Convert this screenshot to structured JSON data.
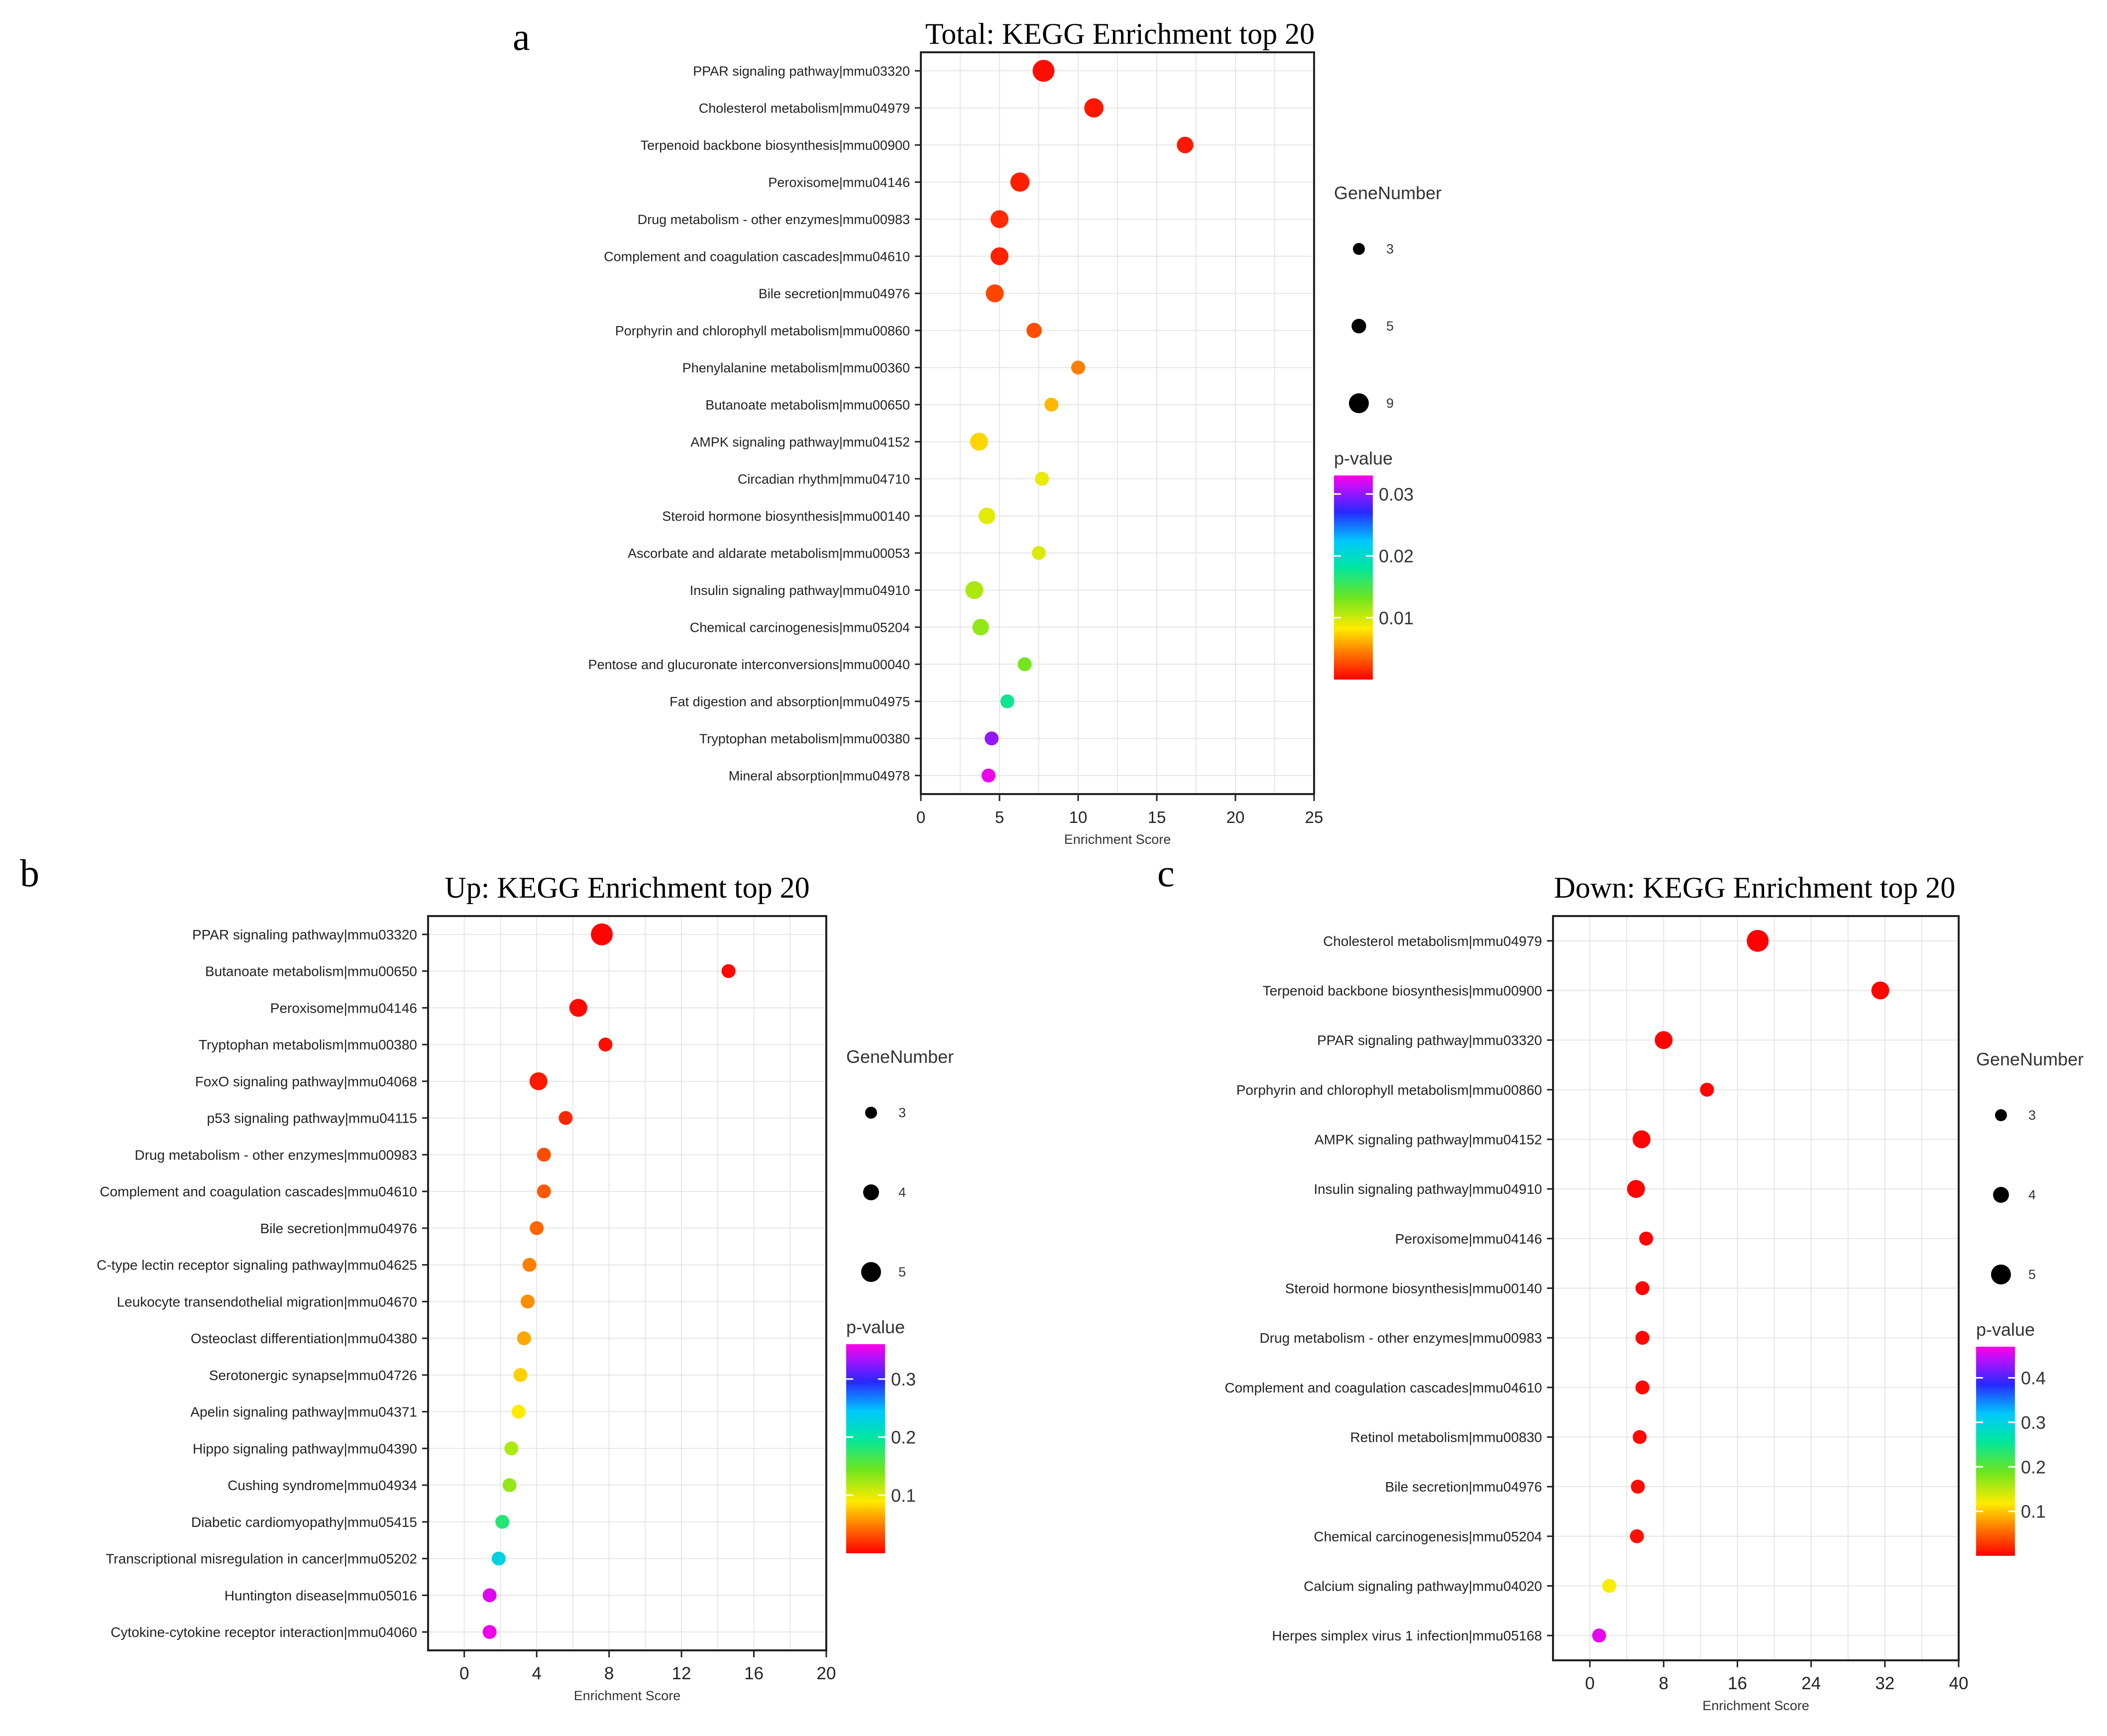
{
  "figure": {
    "panel_letters": [
      "a",
      "b",
      "c"
    ],
    "gene_number_title": "GeneNumber",
    "pvalue_title": "p-value"
  },
  "chart_data": [
    {
      "panel": "a",
      "type": "scatter",
      "title": "Total: KEGG Enrichment top 20",
      "xlabel": "Enrichment Score",
      "ylabel": "",
      "xlim": [
        0,
        25
      ],
      "xticks": [
        0,
        5,
        10,
        15,
        20,
        25
      ],
      "grid": true,
      "legend_position": "right",
      "size_legend": {
        "title": "GeneNumber",
        "values": [
          3,
          5,
          9
        ]
      },
      "color_legend": {
        "title": "p-value",
        "ticks": [
          0.01,
          0.02,
          0.03
        ],
        "range": [
          0,
          0.033
        ]
      },
      "size_range": [
        3,
        9
      ],
      "points": [
        {
          "term": "PPAR signaling pathway|mmu03320",
          "x": 7.8,
          "genes": 9,
          "p": 0.0005
        },
        {
          "term": "Cholesterol metabolism|mmu04979",
          "x": 11.0,
          "genes": 7,
          "p": 0.0008
        },
        {
          "term": "Terpenoid backbone biosynthesis|mmu00900",
          "x": 16.8,
          "genes": 5,
          "p": 0.0009
        },
        {
          "term": "Peroxisome|mmu04146",
          "x": 6.3,
          "genes": 7,
          "p": 0.0011
        },
        {
          "term": "Drug metabolism - other enzymes|mmu00983",
          "x": 5.0,
          "genes": 6,
          "p": 0.0015
        },
        {
          "term": "Complement and coagulation cascades|mmu04610",
          "x": 5.0,
          "genes": 6,
          "p": 0.0012
        },
        {
          "term": "Bile secretion|mmu04976",
          "x": 4.7,
          "genes": 6,
          "p": 0.0025
        },
        {
          "term": "Porphyrin and chlorophyll metabolism|mmu00860",
          "x": 7.2,
          "genes": 4,
          "p": 0.0028
        },
        {
          "term": "Phenylalanine metabolism|mmu00360",
          "x": 10.0,
          "genes": 3,
          "p": 0.0045
        },
        {
          "term": "Butanoate metabolism|mmu00650",
          "x": 8.3,
          "genes": 3,
          "p": 0.0065
        },
        {
          "term": "AMPK signaling pathway|mmu04152",
          "x": 3.7,
          "genes": 6,
          "p": 0.0075
        },
        {
          "term": "Circadian rhythm|mmu04710",
          "x": 7.7,
          "genes": 3,
          "p": 0.009
        },
        {
          "term": "Steroid hormone biosynthesis|mmu00140",
          "x": 4.2,
          "genes": 5,
          "p": 0.0092
        },
        {
          "term": "Ascorbate and aldarate metabolism|mmu00053",
          "x": 7.5,
          "genes": 3,
          "p": 0.0095
        },
        {
          "term": "Insulin signaling pathway|mmu04910",
          "x": 3.4,
          "genes": 6,
          "p": 0.011
        },
        {
          "term": "Chemical carcinogenesis|mmu05204",
          "x": 3.8,
          "genes": 5,
          "p": 0.012
        },
        {
          "term": "Pentose and glucuronate interconversions|mmu00040",
          "x": 6.6,
          "genes": 3,
          "p": 0.013
        },
        {
          "term": "Fat digestion and absorption|mmu04975",
          "x": 5.5,
          "genes": 3,
          "p": 0.0175
        },
        {
          "term": "Tryptophan metabolism|mmu00380",
          "x": 4.5,
          "genes": 3,
          "p": 0.03
        },
        {
          "term": "Mineral absorption|mmu04978",
          "x": 4.3,
          "genes": 3,
          "p": 0.0325
        }
      ]
    },
    {
      "panel": "b",
      "type": "scatter",
      "title": "Up: KEGG Enrichment top 20",
      "xlabel": "Enrichment Score",
      "ylabel": "",
      "xlim": [
        -2,
        20
      ],
      "xticks": [
        0,
        4,
        8,
        12,
        16,
        20
      ],
      "grid": true,
      "legend_position": "right",
      "size_legend": {
        "title": "GeneNumber",
        "values": [
          3,
          4,
          5
        ]
      },
      "color_legend": {
        "title": "p-value",
        "ticks": [
          0.1,
          0.2,
          0.3
        ],
        "range": [
          0,
          0.36
        ]
      },
      "size_range": [
        3,
        5
      ],
      "points": [
        {
          "term": "PPAR signaling pathway|mmu03320",
          "x": 7.6,
          "genes": 5,
          "p": 0.002
        },
        {
          "term": "Butanoate metabolism|mmu00650",
          "x": 14.6,
          "genes": 3,
          "p": 0.003
        },
        {
          "term": "Peroxisome|mmu04146",
          "x": 6.3,
          "genes": 4,
          "p": 0.004
        },
        {
          "term": "Tryptophan metabolism|mmu00380",
          "x": 7.8,
          "genes": 3,
          "p": 0.006
        },
        {
          "term": "FoxO signaling pathway|mmu04068",
          "x": 4.1,
          "genes": 4,
          "p": 0.01
        },
        {
          "term": "p53 signaling pathway|mmu04115",
          "x": 5.6,
          "genes": 3,
          "p": 0.015
        },
        {
          "term": "Drug metabolism - other enzymes|mmu00983",
          "x": 4.4,
          "genes": 3,
          "p": 0.03
        },
        {
          "term": "Complement and coagulation cascades|mmu04610",
          "x": 4.4,
          "genes": 3,
          "p": 0.035
        },
        {
          "term": "Bile secretion|mmu04976",
          "x": 4.0,
          "genes": 3,
          "p": 0.04
        },
        {
          "term": "C-type lectin receptor signaling pathway|mmu04625",
          "x": 3.6,
          "genes": 3,
          "p": 0.05
        },
        {
          "term": "Leukocyte transendothelial migration|mmu04670",
          "x": 3.5,
          "genes": 3,
          "p": 0.055
        },
        {
          "term": "Osteoclast differentiation|mmu04380",
          "x": 3.3,
          "genes": 3,
          "p": 0.065
        },
        {
          "term": "Serotonergic synapse|mmu04726",
          "x": 3.1,
          "genes": 3,
          "p": 0.08
        },
        {
          "term": "Apelin signaling pathway|mmu04371",
          "x": 3.0,
          "genes": 3,
          "p": 0.09
        },
        {
          "term": "Hippo signaling pathway|mmu04390",
          "x": 2.6,
          "genes": 3,
          "p": 0.12
        },
        {
          "term": "Cushing syndrome|mmu04934",
          "x": 2.5,
          "genes": 3,
          "p": 0.13
        },
        {
          "term": "Diabetic cardiomyopathy|mmu05415",
          "x": 2.1,
          "genes": 3,
          "p": 0.18
        },
        {
          "term": "Transcriptional misregulation in cancer|mmu05202",
          "x": 1.9,
          "genes": 3,
          "p": 0.23
        },
        {
          "term": "Huntington disease|mmu05016",
          "x": 1.4,
          "genes": 3,
          "p": 0.35
        },
        {
          "term": "Cytokine-cytokine receptor interaction|mmu04060",
          "x": 1.4,
          "genes": 3,
          "p": 0.355
        }
      ]
    },
    {
      "panel": "c",
      "type": "scatter",
      "title": "Down: KEGG Enrichment top 20",
      "xlabel": "Enrichment Score",
      "ylabel": "",
      "xlim": [
        -4,
        40
      ],
      "xticks": [
        0,
        8,
        16,
        24,
        32,
        40
      ],
      "grid": true,
      "legend_position": "right",
      "size_legend": {
        "title": "GeneNumber",
        "values": [
          3,
          4,
          5
        ]
      },
      "color_legend": {
        "title": "p-value",
        "ticks": [
          0.1,
          0.2,
          0.3,
          0.4
        ],
        "range": [
          0,
          0.47
        ]
      },
      "size_range": [
        3,
        5
      ],
      "points": [
        {
          "term": "Cholesterol metabolism|mmu04979",
          "x": 18.2,
          "genes": 5,
          "p": 0.001
        },
        {
          "term": "Terpenoid backbone biosynthesis|mmu00900",
          "x": 31.5,
          "genes": 4,
          "p": 0.002
        },
        {
          "term": "PPAR signaling pathway|mmu03320",
          "x": 8.0,
          "genes": 4,
          "p": 0.001
        },
        {
          "term": "Porphyrin and chlorophyll metabolism|mmu00860",
          "x": 12.7,
          "genes": 3,
          "p": 0.003
        },
        {
          "term": "AMPK signaling pathway|mmu04152",
          "x": 5.6,
          "genes": 4,
          "p": 0.002
        },
        {
          "term": "Insulin signaling pathway|mmu04910",
          "x": 5.0,
          "genes": 4,
          "p": 0.002
        },
        {
          "term": "Peroxisome|mmu04146",
          "x": 6.1,
          "genes": 3,
          "p": 0.003
        },
        {
          "term": "Steroid hormone biosynthesis|mmu00140",
          "x": 5.7,
          "genes": 3,
          "p": 0.003
        },
        {
          "term": "Drug metabolism - other enzymes|mmu00983",
          "x": 5.7,
          "genes": 3,
          "p": 0.004
        },
        {
          "term": "Complement and coagulation cascades|mmu04610",
          "x": 5.7,
          "genes": 3,
          "p": 0.004
        },
        {
          "term": "Retinol metabolism|mmu00830",
          "x": 5.4,
          "genes": 3,
          "p": 0.005
        },
        {
          "term": "Bile secretion|mmu04976",
          "x": 5.2,
          "genes": 3,
          "p": 0.006
        },
        {
          "term": "Chemical carcinogenesis|mmu05204",
          "x": 5.1,
          "genes": 3,
          "p": 0.008
        },
        {
          "term": "Calcium signaling pathway|mmu04020",
          "x": 2.1,
          "genes": 3,
          "p": 0.12
        },
        {
          "term": "Herpes simplex virus 1 infection|mmu05168",
          "x": 1.0,
          "genes": 3,
          "p": 0.46
        }
      ]
    }
  ]
}
